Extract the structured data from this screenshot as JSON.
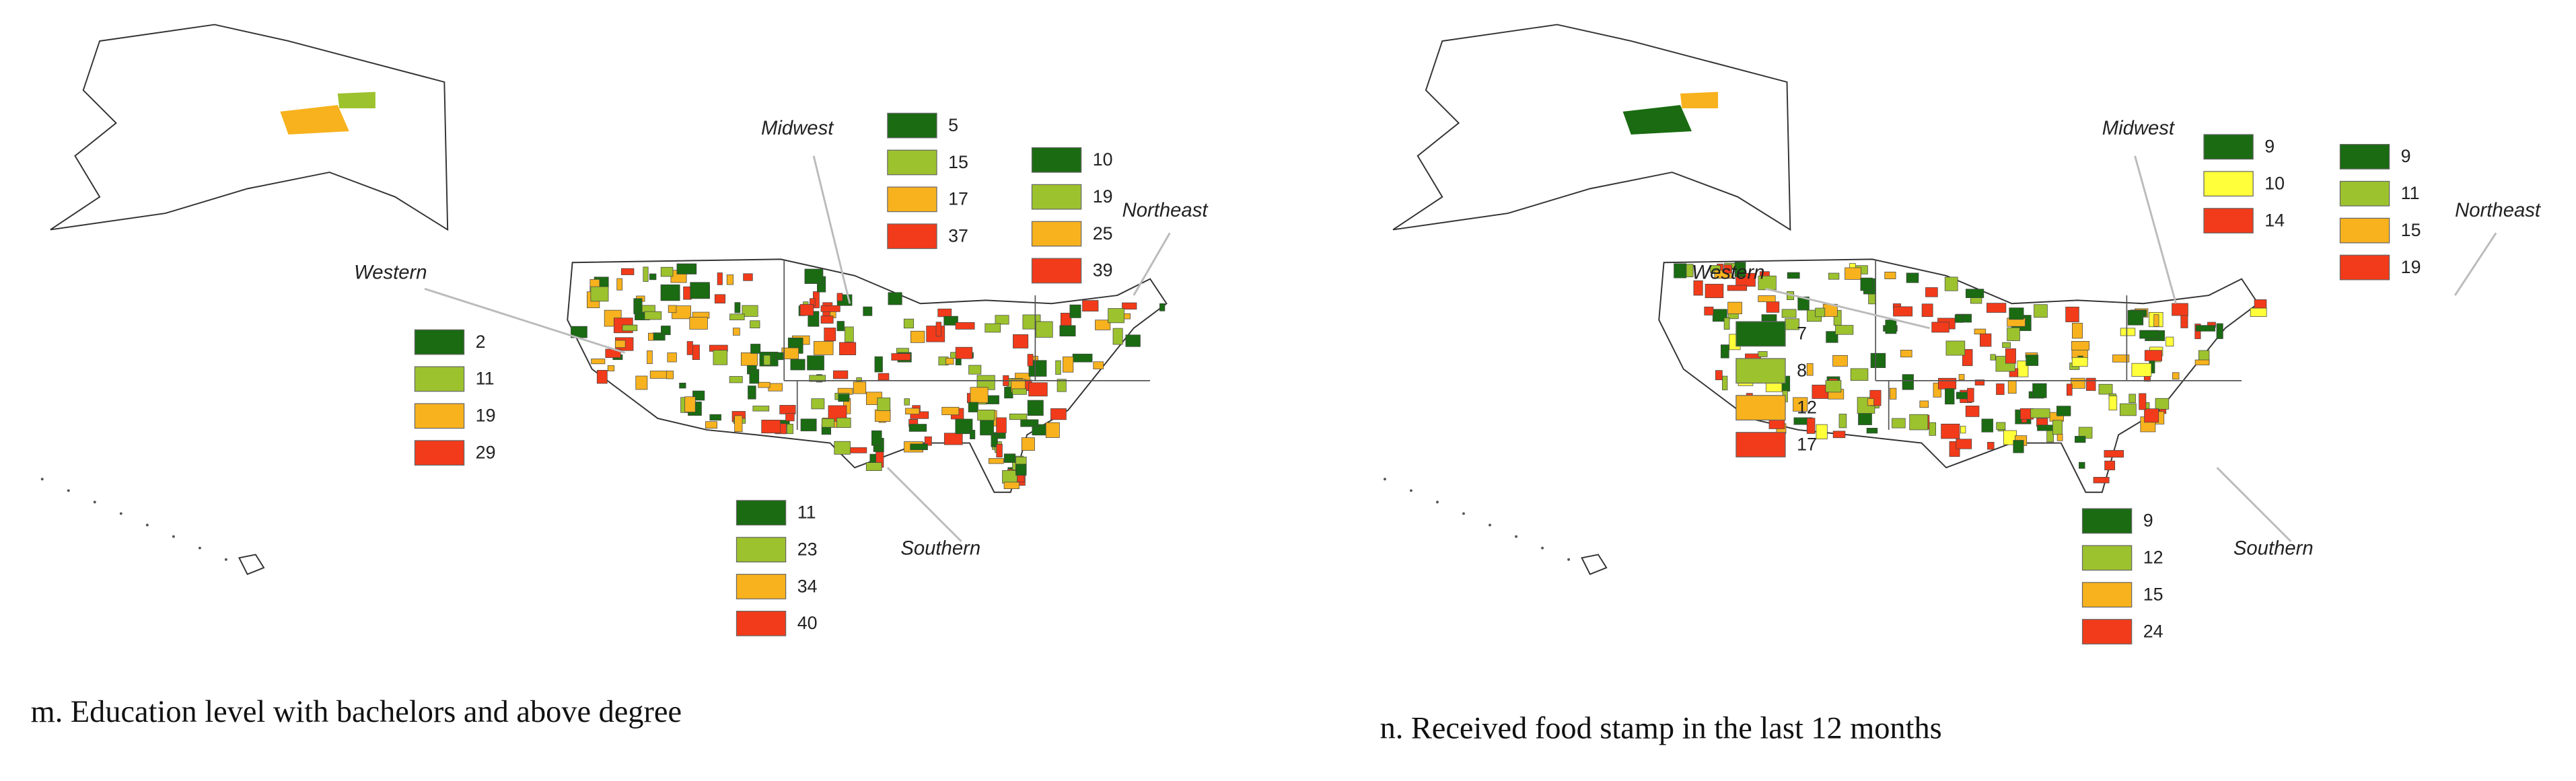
{
  "panels": [
    {
      "caption": "m. Education level with bachelors and above degree",
      "regions": [
        {
          "name": "Western",
          "legend": [
            {
              "value": 2,
              "color": "#1a6b12"
            },
            {
              "value": 11,
              "color": "#9cc22e"
            },
            {
              "value": 19,
              "color": "#f7b21e"
            },
            {
              "value": 29,
              "color": "#f23b1a"
            }
          ]
        },
        {
          "name": "Midwest",
          "legend": [
            {
              "value": 5,
              "color": "#1a6b12"
            },
            {
              "value": 15,
              "color": "#9cc22e"
            },
            {
              "value": 17,
              "color": "#f7b21e"
            },
            {
              "value": 37,
              "color": "#f23b1a"
            }
          ]
        },
        {
          "name": "Northeast",
          "legend": [
            {
              "value": 10,
              "color": "#1a6b12"
            },
            {
              "value": 19,
              "color": "#9cc22e"
            },
            {
              "value": 25,
              "color": "#f7b21e"
            },
            {
              "value": 39,
              "color": "#f23b1a"
            }
          ]
        },
        {
          "name": "Southern",
          "legend": [
            {
              "value": 11,
              "color": "#1a6b12"
            },
            {
              "value": 23,
              "color": "#9cc22e"
            },
            {
              "value": 34,
              "color": "#f7b21e"
            },
            {
              "value": 40,
              "color": "#f23b1a"
            }
          ]
        }
      ]
    },
    {
      "caption": "n. Received food stamp in the last 12 months",
      "regions": [
        {
          "name": "Western",
          "legend": [
            {
              "value": 7,
              "color": "#1a6b12"
            },
            {
              "value": 8,
              "color": "#9cc22e"
            },
            {
              "value": 12,
              "color": "#f7b21e"
            },
            {
              "value": 17,
              "color": "#f23b1a"
            }
          ]
        },
        {
          "name": "Midwest",
          "legend": [
            {
              "value": 9,
              "color": "#1a6b12"
            },
            {
              "value": 10,
              "color": "#ffff3a"
            },
            {
              "value": 14,
              "color": "#f23b1a"
            }
          ]
        },
        {
          "name": "Northeast",
          "legend": [
            {
              "value": 9,
              "color": "#1a6b12"
            },
            {
              "value": 11,
              "color": "#9cc22e"
            },
            {
              "value": 15,
              "color": "#f7b21e"
            },
            {
              "value": 19,
              "color": "#f23b1a"
            }
          ]
        },
        {
          "name": "Southern",
          "legend": [
            {
              "value": 9,
              "color": "#1a6b12"
            },
            {
              "value": 12,
              "color": "#9cc22e"
            },
            {
              "value": 15,
              "color": "#f7b21e"
            },
            {
              "value": 24,
              "color": "#f23b1a"
            }
          ]
        }
      ]
    }
  ]
}
